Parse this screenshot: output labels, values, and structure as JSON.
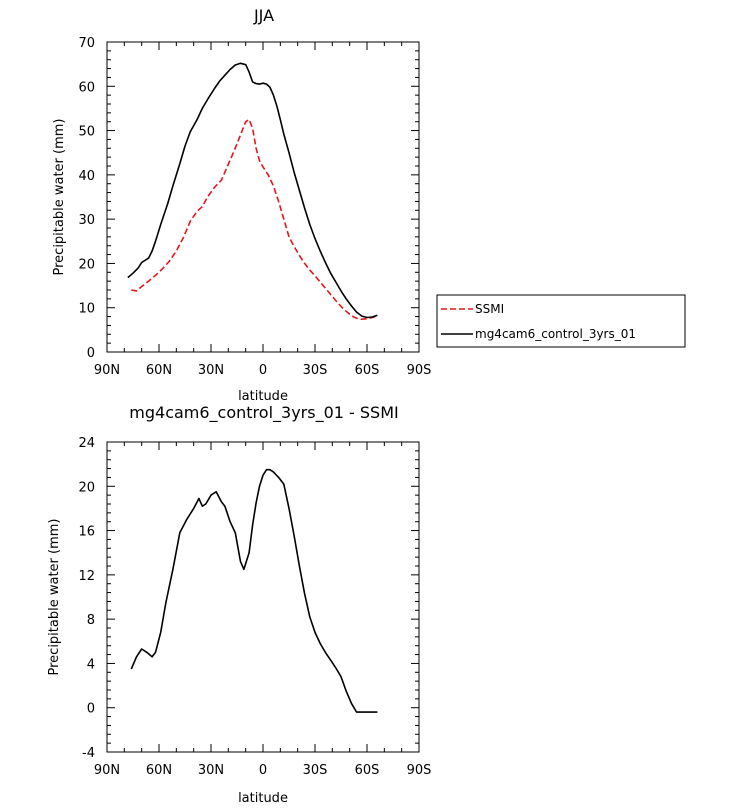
{
  "chart_data": [
    {
      "type": "line",
      "title": "JJA",
      "xlabel": "latitude",
      "ylabel": "Precipitable water (mm)",
      "x_ticks": [
        "90N",
        "60N",
        "30N",
        "0",
        "30S",
        "60S",
        "90S"
      ],
      "x_tick_values": [
        90,
        60,
        30,
        0,
        -30,
        -60,
        -90
      ],
      "y_ticks": [
        "0",
        "10",
        "20",
        "30",
        "40",
        "50",
        "60",
        "70"
      ],
      "xlim": [
        90,
        -90
      ],
      "ylim": [
        0,
        70
      ],
      "legend_position": "right-middle",
      "series": [
        {
          "name": "SSMI",
          "color": "#e8141b",
          "style": "dashed",
          "x": [
            76,
            73,
            70,
            66,
            62,
            58,
            54,
            50,
            46,
            42,
            38,
            35,
            32,
            28,
            24,
            21,
            18,
            15,
            12,
            10,
            8,
            6,
            4,
            2,
            0,
            -3,
            -6,
            -9,
            -12,
            -15,
            -18,
            -21,
            -24,
            -27,
            -30,
            -33,
            -36,
            -39,
            -42,
            -45,
            -48,
            -51,
            -54,
            -57,
            -60,
            -63,
            -66
          ],
          "y": [
            14.0,
            13.8,
            14.8,
            16.0,
            17.3,
            18.8,
            20.5,
            22.8,
            25.8,
            29.5,
            31.8,
            32.8,
            35.0,
            37.2,
            38.8,
            41.5,
            44.2,
            47.0,
            50.0,
            52.0,
            52.5,
            50.5,
            46.0,
            43.2,
            41.8,
            40.0,
            37.5,
            34.0,
            30.0,
            26.0,
            23.8,
            21.8,
            20.0,
            18.5,
            17.2,
            15.8,
            14.4,
            13.0,
            11.6,
            10.3,
            9.2,
            8.2,
            7.6,
            7.4,
            7.5,
            7.8,
            8.2
          ]
        },
        {
          "name": "mg4cam6_control_3yrs_01",
          "color": "#000000",
          "style": "solid",
          "x": [
            78,
            75,
            72,
            70,
            66,
            64,
            62,
            59,
            55,
            52,
            48,
            45,
            42,
            38,
            35,
            32,
            28,
            25,
            22,
            19,
            16,
            13,
            10,
            8,
            6,
            4,
            2,
            0,
            -2,
            -4,
            -6,
            -8,
            -10,
            -12,
            -15,
            -18,
            -21,
            -24,
            -27,
            -30,
            -33,
            -36,
            -39,
            -42,
            -45,
            -48,
            -51,
            -54,
            -57,
            -60,
            -63,
            -66
          ],
          "y": [
            16.8,
            17.8,
            19.0,
            20.2,
            21.2,
            22.8,
            25.0,
            28.8,
            33.5,
            37.5,
            42.5,
            46.5,
            49.7,
            52.5,
            55.0,
            57.0,
            59.5,
            61.2,
            62.5,
            63.8,
            64.8,
            65.2,
            64.9,
            63.2,
            61.0,
            60.6,
            60.5,
            60.7,
            60.5,
            59.8,
            58.0,
            55.5,
            52.5,
            49.2,
            45.0,
            40.5,
            36.5,
            32.5,
            28.8,
            25.6,
            22.8,
            20.2,
            17.8,
            15.8,
            13.8,
            12.0,
            10.4,
            9.0,
            8.1,
            7.8,
            7.9,
            8.3
          ]
        }
      ]
    },
    {
      "type": "line",
      "title": "mg4cam6_control_3yrs_01 - SSMI",
      "xlabel": "latitude",
      "ylabel": "Precipitable water (mm)",
      "x_ticks": [
        "90N",
        "60N",
        "30N",
        "0",
        "30S",
        "60S",
        "90S"
      ],
      "x_tick_values": [
        90,
        60,
        30,
        0,
        -30,
        -60,
        -90
      ],
      "y_ticks": [
        "-4",
        "0",
        "4",
        "8",
        "12",
        "16",
        "20",
        "24"
      ],
      "xlim": [
        90,
        -90
      ],
      "ylim": [
        -4,
        24
      ],
      "series": [
        {
          "color": "#000000",
          "style": "solid",
          "x": [
            76,
            73,
            70,
            67,
            64,
            62,
            59,
            56,
            52,
            48,
            44,
            40,
            37,
            35,
            33,
            30,
            27,
            24,
            22,
            19,
            16,
            13,
            11,
            8,
            6,
            4,
            2,
            0,
            -2,
            -4,
            -6,
            -9,
            -12,
            -15,
            -18,
            -21,
            -24,
            -27,
            -30,
            -33,
            -36,
            -39,
            -42,
            -45,
            -48,
            -51,
            -54,
            -57,
            -60,
            -63,
            -66
          ],
          "y": [
            3.5,
            4.6,
            5.3,
            5.0,
            4.6,
            5.0,
            6.8,
            9.5,
            12.5,
            15.8,
            17.0,
            18.0,
            18.9,
            18.2,
            18.4,
            19.2,
            19.5,
            18.6,
            18.2,
            16.8,
            15.8,
            13.2,
            12.5,
            14.0,
            16.5,
            18.5,
            20.0,
            21.0,
            21.5,
            21.5,
            21.3,
            20.8,
            20.2,
            18.0,
            15.5,
            12.8,
            10.3,
            8.2,
            6.8,
            5.8,
            5.0,
            4.3,
            3.6,
            2.8,
            1.5,
            0.4,
            -0.4,
            -0.4,
            -0.4,
            -0.4,
            -0.4
          ]
        }
      ]
    }
  ]
}
